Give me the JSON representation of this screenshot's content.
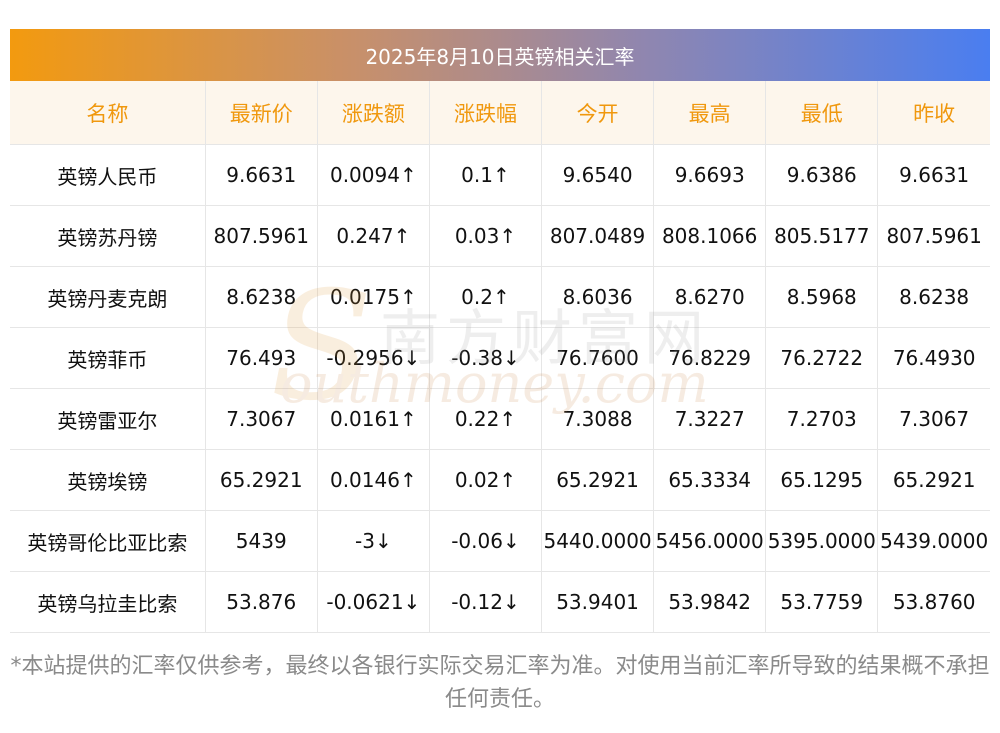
{
  "title": "2025年8月10日英镑相关汇率",
  "headers": [
    "名称",
    "最新价",
    "涨跌额",
    "涨跌幅",
    "今开",
    "最高",
    "最低",
    "昨收"
  ],
  "rows": [
    {
      "name": "英镑人民币",
      "latest": "9.6631",
      "change": "0.0094↑",
      "pct": "0.1↑",
      "open": "9.6540",
      "high": "9.6693",
      "low": "9.6386",
      "prev": "9.6631",
      "dir": "up"
    },
    {
      "name": "英镑苏丹镑",
      "latest": "807.5961",
      "change": "0.247↑",
      "pct": "0.03↑",
      "open": "807.0489",
      "high": "808.1066",
      "low": "805.5177",
      "prev": "807.5961",
      "dir": "up"
    },
    {
      "name": "英镑丹麦克朗",
      "latest": "8.6238",
      "change": "0.0175↑",
      "pct": "0.2↑",
      "open": "8.6036",
      "high": "8.6270",
      "low": "8.5968",
      "prev": "8.6238",
      "dir": "up"
    },
    {
      "name": "英镑菲币",
      "latest": "76.493",
      "change": "-0.2956↓",
      "pct": "-0.38↓",
      "open": "76.7600",
      "high": "76.8229",
      "low": "76.2722",
      "prev": "76.4930",
      "dir": "down"
    },
    {
      "name": "英镑雷亚尔",
      "latest": "7.3067",
      "change": "0.0161↑",
      "pct": "0.22↑",
      "open": "7.3088",
      "high": "7.3227",
      "low": "7.2703",
      "prev": "7.3067",
      "dir": "up"
    },
    {
      "name": "英镑埃镑",
      "latest": "65.2921",
      "change": "0.0146↑",
      "pct": "0.02↑",
      "open": "65.2921",
      "high": "65.3334",
      "low": "65.1295",
      "prev": "65.2921",
      "dir": "up"
    },
    {
      "name": "英镑哥伦比亚比索",
      "latest": "5439",
      "change": "-3↓",
      "pct": "-0.06↓",
      "open": "5440.0000",
      "high": "5456.0000",
      "low": "5395.0000",
      "prev": "5439.0000",
      "dir": "down"
    },
    {
      "name": "英镑乌拉圭比索",
      "latest": "53.876",
      "change": "-0.0621↓",
      "pct": "-0.12↓",
      "open": "53.9401",
      "high": "53.9842",
      "low": "53.7759",
      "prev": "53.8760",
      "dir": "down"
    }
  ],
  "watermark": {
    "cn": "南方财富网",
    "en": "outhmoney.com",
    "letter": "S"
  },
  "footnote": "*本站提供的汇率仅供参考，最终以各银行实际交易汇率为准。对使用当前汇率所导致的结果概不承担任何责任。",
  "colors": {
    "up": "#e8141b",
    "down": "#138a17",
    "header_text": "#f0980e",
    "header_bg": "#fdf6ec"
  }
}
